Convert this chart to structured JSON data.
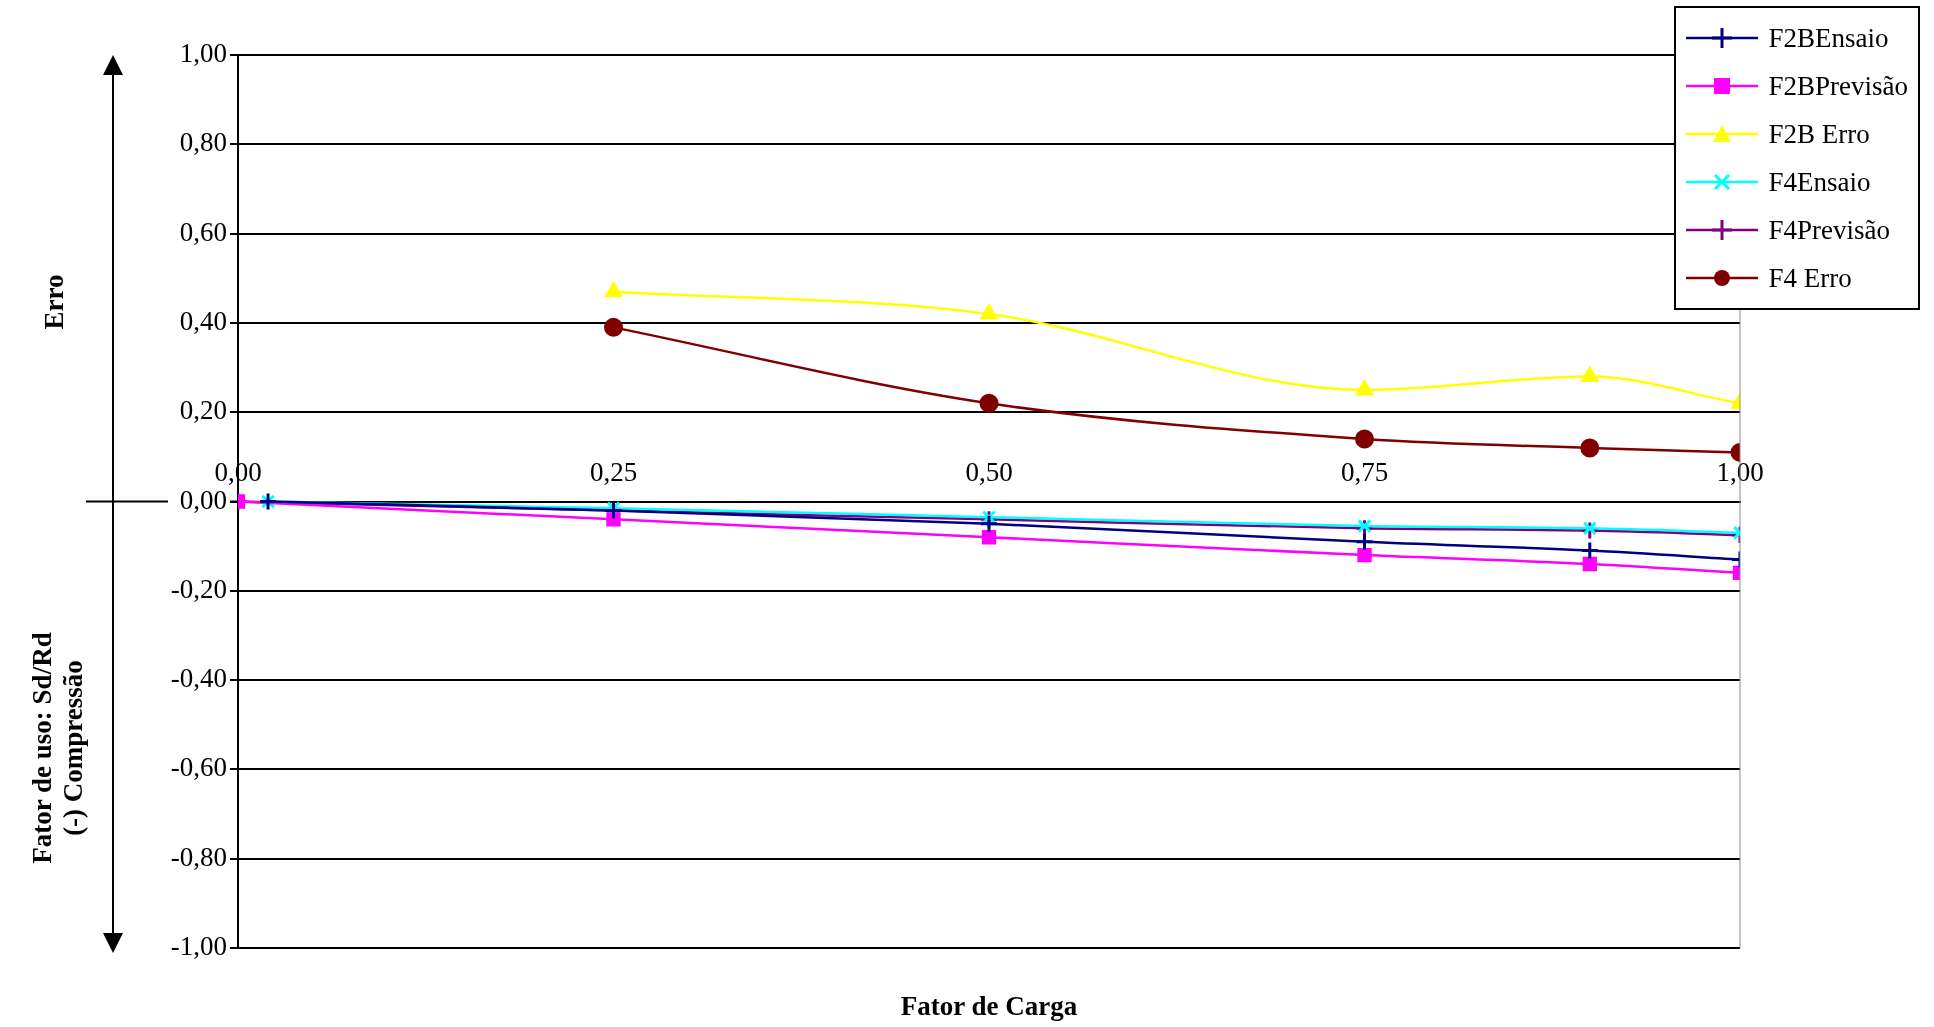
{
  "chart_data": {
    "type": "line",
    "xlabel": "Fator de Carga",
    "ylabel": "Erro",
    "annotations": [
      "Fator de uso: Sd/Rd\n(-) Compressão"
    ],
    "xlim": [
      0,
      1
    ],
    "xticks": [
      {
        "value": 0,
        "label": "0,00"
      },
      {
        "value": 0.25,
        "label": "0,25"
      },
      {
        "value": 0.5,
        "label": "0,50"
      },
      {
        "value": 0.75,
        "label": "0,75"
      },
      {
        "value": 1,
        "label": "1,00"
      }
    ],
    "ylim": [
      -1,
      1
    ],
    "yticks": [
      {
        "value": -1,
        "label": "-1,00"
      },
      {
        "value": -0.8,
        "label": "-0,80"
      },
      {
        "value": -0.6,
        "label": "-0,60"
      },
      {
        "value": -0.4,
        "label": "-0,40"
      },
      {
        "value": -0.2,
        "label": "-0,20"
      },
      {
        "value": 0,
        "label": "0,00"
      },
      {
        "value": 0.2,
        "label": "0,20"
      },
      {
        "value": 0.4,
        "label": "0,40"
      },
      {
        "value": 0.6,
        "label": "0,60"
      },
      {
        "value": 0.8,
        "label": "0,80"
      },
      {
        "value": 1,
        "label": "1,00"
      }
    ],
    "grid": "y",
    "legend": "top right",
    "line_style": "solid",
    "series": [
      {
        "name": "F2BEnsaio",
        "color": "#000080",
        "marker": "cross",
        "x": [
          0.02,
          0.25,
          0.5,
          0.75,
          0.9,
          1
        ],
        "values": [
          0,
          -0.02,
          -0.05,
          -0.09,
          -0.11,
          -0.13
        ]
      },
      {
        "name": "F2BPrevisão",
        "color": "#ff00ff",
        "marker": "square",
        "x": [
          0,
          0.25,
          0.5,
          0.75,
          0.9,
          1
        ],
        "values": [
          0,
          -0.04,
          -0.08,
          -0.12,
          -0.14,
          -0.16
        ]
      },
      {
        "name": "F2B Erro",
        "color": "#ffff00",
        "marker": "triangle",
        "x": [
          0.25,
          0.5,
          0.75,
          0.9,
          1
        ],
        "values": [
          0.47,
          0.42,
          0.25,
          0.28,
          0.22
        ]
      },
      {
        "name": "F4Ensaio",
        "color": "#00ffff",
        "marker": "x",
        "x": [
          0.02,
          0.25,
          0.5,
          0.75,
          0.9,
          1
        ],
        "values": [
          0,
          -0.015,
          -0.035,
          -0.055,
          -0.06,
          -0.07
        ]
      },
      {
        "name": "F4Previsão",
        "color": "#800080",
        "marker": "cross",
        "x": [
          0,
          0.25,
          0.5,
          0.75,
          0.9,
          1
        ],
        "values": [
          0,
          -0.02,
          -0.04,
          -0.06,
          -0.065,
          -0.075
        ]
      },
      {
        "name": "F4 Erro",
        "color": "#800000",
        "marker": "circle",
        "x": [
          0.25,
          0.5,
          0.75,
          0.9,
          1
        ],
        "values": [
          0.39,
          0.22,
          0.14,
          0.12,
          0.11
        ]
      }
    ]
  }
}
